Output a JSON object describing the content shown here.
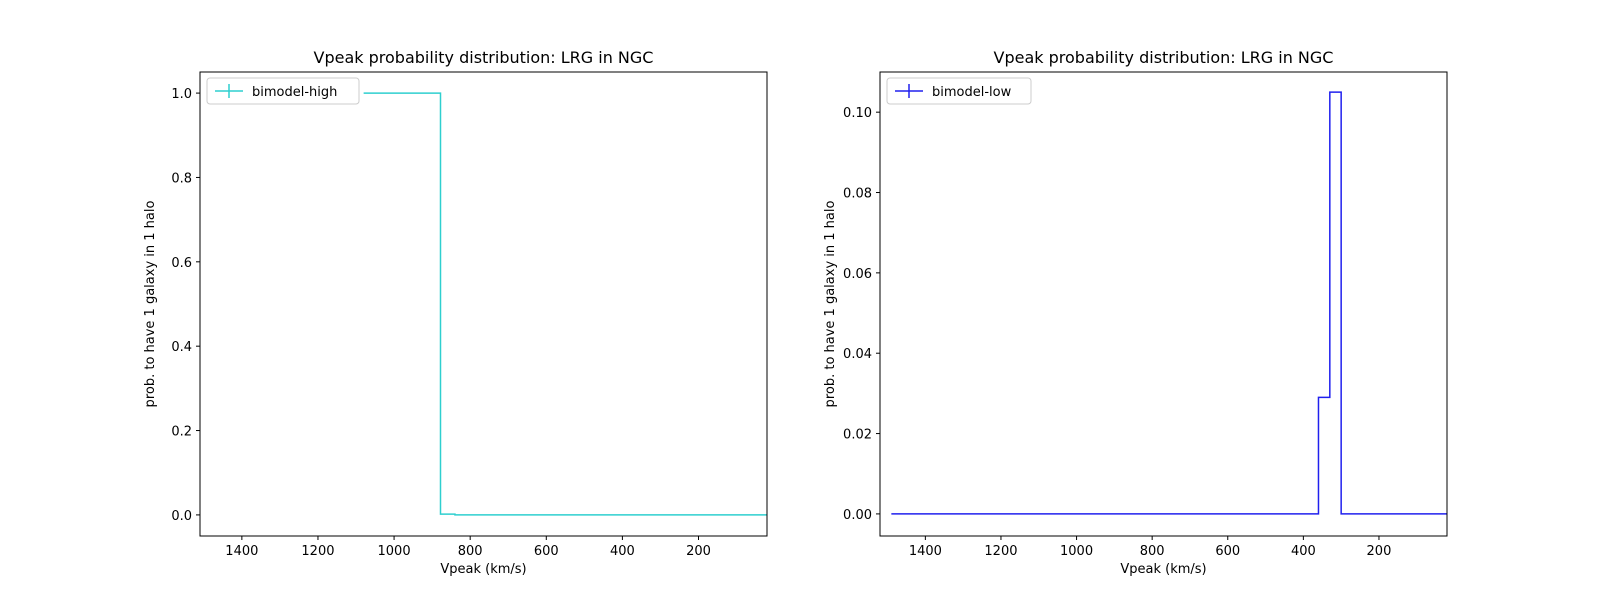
{
  "chart_data": [
    {
      "type": "line",
      "drawstyle": "steps",
      "title": "Vpeak probability distribution: LRG in NGC",
      "xlabel": "Vpeak (km/s)",
      "ylabel": "prob. to have 1 galaxy in 1 halo",
      "x_inverted": true,
      "xlim": [
        1510,
        20
      ],
      "ylim": [
        -0.05,
        1.05
      ],
      "xticks": [
        1400,
        1200,
        1000,
        800,
        600,
        400,
        200
      ],
      "yticks": [
        0.0,
        0.2,
        0.4,
        0.6,
        0.8,
        1.0
      ],
      "ytick_labels": [
        "0.0",
        "0.2",
        "0.4",
        "0.6",
        "0.8",
        "1.0"
      ],
      "legend_location": "upper left",
      "grid": false,
      "series": [
        {
          "name": "bimodel-high",
          "color": "#2ecfcf",
          "x": [
            1080,
            1020,
            960,
            900,
            878,
            850,
            840,
            800,
            600,
            400,
            200,
            20
          ],
          "y": [
            1.0,
            1.0,
            1.0,
            1.0,
            0.002,
            0.002,
            0.0,
            0.0,
            0.0,
            0.0,
            0.0,
            0.0
          ]
        }
      ]
    },
    {
      "type": "line",
      "drawstyle": "steps",
      "title": "Vpeak probability distribution: LRG in NGC",
      "xlabel": "Vpeak (km/s)",
      "ylabel": "prob. to have 1 galaxy in 1 halo",
      "x_inverted": true,
      "xlim": [
        1520,
        20
      ],
      "ylim": [
        -0.0055,
        0.11
      ],
      "xticks": [
        1400,
        1200,
        1000,
        800,
        600,
        400,
        200
      ],
      "yticks": [
        0.0,
        0.02,
        0.04,
        0.06,
        0.08,
        0.1
      ],
      "ytick_labels": [
        "0.00",
        "0.02",
        "0.04",
        "0.06",
        "0.08",
        "0.10"
      ],
      "legend_location": "upper left",
      "grid": false,
      "series": [
        {
          "name": "bimodel-low",
          "color": "#2020ee",
          "x": [
            1490,
            1200,
            1000,
            800,
            600,
            400,
            360,
            330,
            300,
            200,
            20
          ],
          "y": [
            0.0,
            0.0,
            0.0,
            0.0,
            0.0,
            0.0,
            0.029,
            0.105,
            0.0,
            0.0,
            0.0
          ]
        }
      ]
    }
  ]
}
